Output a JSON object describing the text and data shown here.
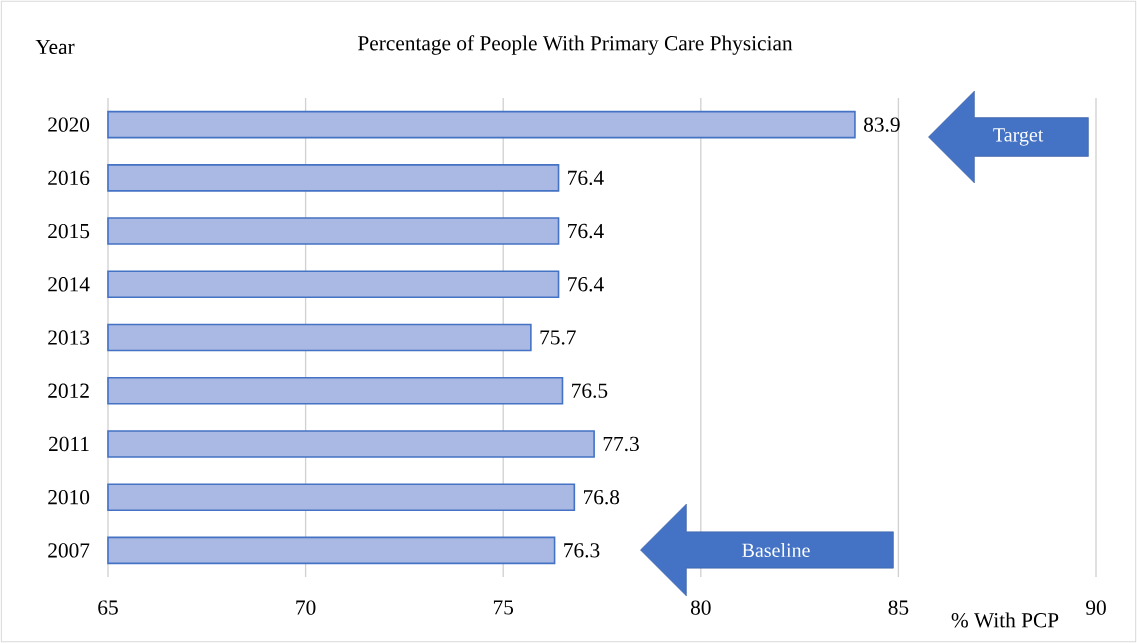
{
  "chart_data": {
    "type": "bar",
    "orientation": "horizontal",
    "title": "Percentage  of People With Primary Care Physician",
    "ylabel": "Year",
    "xlabel": "% With PCP",
    "categories": [
      "2020",
      "2016",
      "2015",
      "2014",
      "2013",
      "2012",
      "2011",
      "2010",
      "2007"
    ],
    "values": [
      83.9,
      76.4,
      76.4,
      76.4,
      75.7,
      76.5,
      77.3,
      76.8,
      76.3
    ],
    "color": "#aab9e3",
    "data_labels": true,
    "grid": "x",
    "xlim": [
      65,
      90
    ],
    "xticks": [
      65,
      70,
      75,
      80,
      85,
      90
    ],
    "annotations": [
      "Target",
      "Baseline"
    ]
  }
}
